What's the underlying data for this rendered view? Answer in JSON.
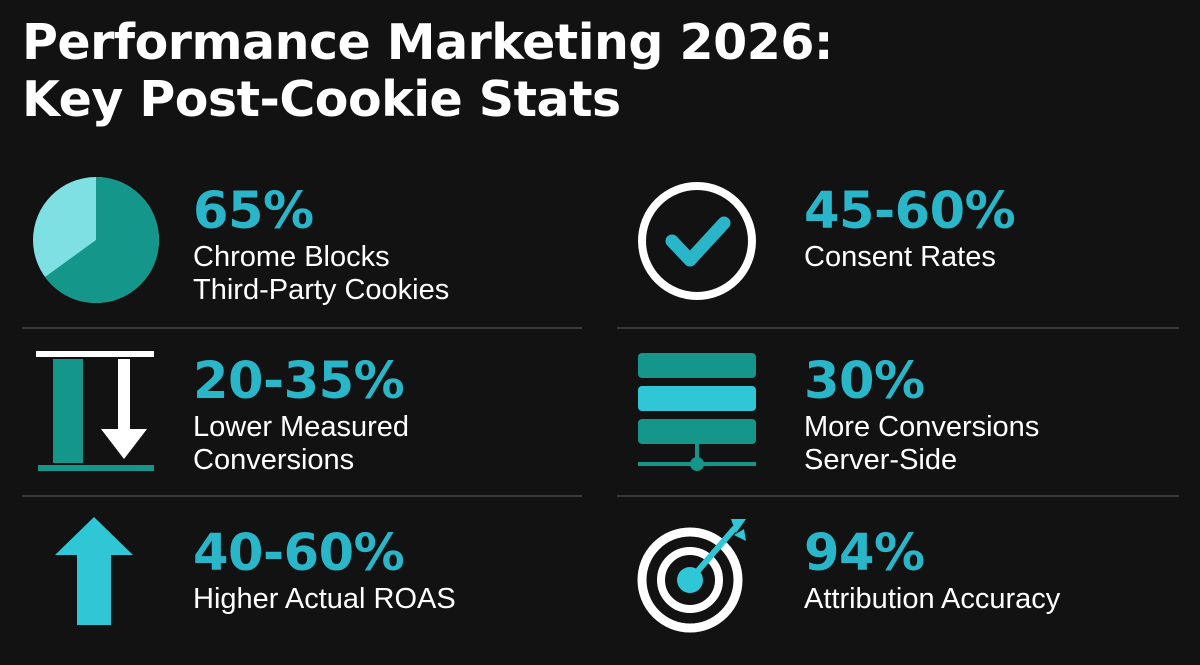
{
  "title": {
    "line1": "Performance Marketing 2026:",
    "line2": "Key Post-Cookie Stats"
  },
  "colors": {
    "background": "#121212",
    "accent": "#29b6c9",
    "accent_light": "#7fe0e3",
    "accent_dark": "#128a80",
    "text": "#ffffff",
    "divider": "#3a3a3a"
  },
  "stats": [
    {
      "icon": "pie-chart-icon",
      "value": "65%",
      "label_line1": "Chrome Blocks",
      "label_line2": "Third-Party Cookies"
    },
    {
      "icon": "checkmark-circle-icon",
      "value": "45-60%",
      "label_line1": "Consent Rates",
      "label_line2": ""
    },
    {
      "icon": "down-arrow-icon",
      "value": "20-35%",
      "label_line1": "Lower Measured",
      "label_line2": "Conversions"
    },
    {
      "icon": "server-stack-icon",
      "value": "30%",
      "label_line1": "More Conversions",
      "label_line2": "Server-Side"
    },
    {
      "icon": "up-arrow-icon",
      "value": "40-60%",
      "label_line1": "Higher Actual ROAS",
      "label_line2": ""
    },
    {
      "icon": "target-icon",
      "value": "94%",
      "label_line1": "Attribution Accuracy",
      "label_line2": ""
    }
  ]
}
